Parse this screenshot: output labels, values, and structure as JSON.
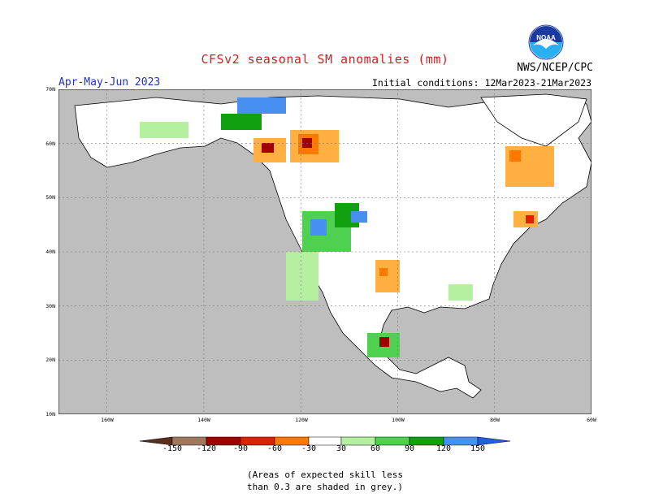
{
  "title": "CFSv2 seasonal SM anomalies (mm)",
  "season": "Apr-May-Jun 2023",
  "initial_conditions": "Initial conditions: 12Mar2023-21Mar2023",
  "agency": "NWS/NCEP/CPC",
  "logo_text": "NOAA",
  "latitude_labels": [
    "70N",
    "60N",
    "50N",
    "40N",
    "30N",
    "20N",
    "10N"
  ],
  "longitude_labels": [
    "160W",
    "140W",
    "120W",
    "100W",
    "80W",
    "60W"
  ],
  "colorbar": {
    "labels": [
      "-150",
      "-120",
      "-90",
      "-60",
      "-30",
      "30",
      "60",
      "90",
      "120",
      "150"
    ],
    "colors": [
      "#5a2e1e",
      "#a07860",
      "#a00000",
      "#e02000",
      "#ff7800",
      "#ffb040",
      "#ffffff",
      "#b4f0a0",
      "#50d050",
      "#10a010",
      "#4890f0",
      "#2060e0"
    ]
  },
  "colors": {
    "land_no_skill": "#bebebe",
    "ocean": "#bebebe",
    "title": "#d02020",
    "season": "#2030c8"
  },
  "note_lines": [
    "(Areas of expected skill less",
    "than 0.3 are shaded in grey.)"
  ]
}
